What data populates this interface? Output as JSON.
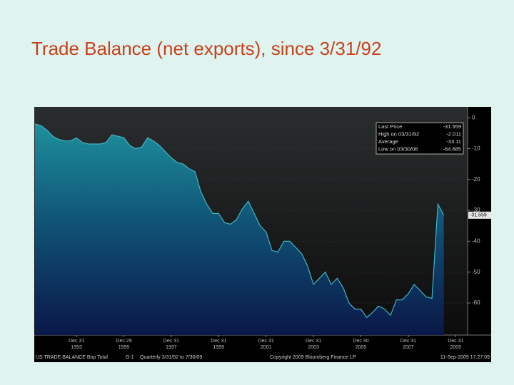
{
  "chart_data": {
    "type": "area",
    "title": "Trade Balance (net exports), since 3/31/92",
    "values": [
      -2.011,
      -2.5,
      -4.0,
      -6.0,
      -7.0,
      -7.5,
      -7.5,
      -6.5,
      -8.0,
      -8.5,
      -8.5,
      -8.5,
      -8.0,
      -5.5,
      -6.0,
      -6.5,
      -9.0,
      -10.0,
      -9.5,
      -6.5,
      -7.5,
      -9.0,
      -11.0,
      -13.0,
      -14.5,
      -15.0,
      -16.5,
      -17.5,
      -24.0,
      -28.0,
      -31.0,
      -31.0,
      -34.0,
      -34.5,
      -33.0,
      -29.5,
      -27.0,
      -31.0,
      -35.0,
      -37.0,
      -43.0,
      -43.5,
      -40.0,
      -40.0,
      -42.0,
      -44.0,
      -48.0,
      -54.0,
      -52.0,
      -50.0,
      -54.0,
      -52.0,
      -55.0,
      -60.0,
      -62.0,
      -62.0,
      -64.685,
      -63.0,
      -61.0,
      -62.0,
      -64.0,
      -59.0,
      -59.0,
      -57.0,
      -54.0,
      -56.0,
      -58.0,
      -58.5,
      -28.0,
      -31.559
    ],
    "x_labels": [
      {
        "date": "Dec 31",
        "year": "1993"
      },
      {
        "date": "Dec 29",
        "year": "1995"
      },
      {
        "date": "Dec 31",
        "year": "1997"
      },
      {
        "date": "Dec 31",
        "year": "1999"
      },
      {
        "date": "Dec 31",
        "year": "2001"
      },
      {
        "date": "Dec 31",
        "year": "2003"
      },
      {
        "date": "Dec 30",
        "year": "2005"
      },
      {
        "date": "Dec 31",
        "year": "2007"
      },
      {
        "date": "Dec 31",
        "year": "2009"
      }
    ],
    "ylim": [
      -70.4,
      3.5
    ],
    "yticks": [
      0,
      -10,
      -20,
      -30,
      -40,
      -50,
      -60
    ],
    "stats": [
      {
        "label": "Last Price",
        "value": -31.559
      },
      {
        "label": "High on 03/31/92",
        "value": -2.011
      },
      {
        "label": "Average",
        "value": -33.11
      },
      {
        "label": "Low on 03/30/06",
        "value": -64.685
      }
    ],
    "footer": {
      "security": "US TRADE BALANCE Bop Total",
      "code": "G-1",
      "range": "Quarterly 3/31/92 to 7/30/09",
      "copyright": "Copyright 2009 Bloomberg Finance LP",
      "timestamp": "11-Sep-2009 17:27:09"
    }
  }
}
